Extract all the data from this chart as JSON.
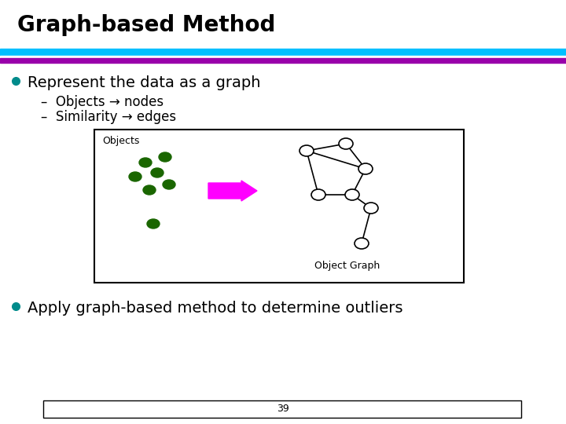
{
  "title": "Graph-based Method",
  "title_fontsize": 20,
  "title_fontweight": "bold",
  "line1_color": "#00BFFF",
  "line2_color": "#9900AA",
  "bullet_color": "#008B8B",
  "bullet1_text": "Represent the data as a graph",
  "sub1": "–  Objects → nodes",
  "sub2": "–  Similarity → edges",
  "bullet2_text": "Apply graph-based method to determine outliers",
  "page_number": "39",
  "dot_color": "#1A6600",
  "arrow_color": "#FF00FF",
  "node_edge_color": "#000000",
  "node_face_color": "#FFFFFF",
  "graph_edge_color": "#000000",
  "objects_label": "Objects",
  "graph_label": "Object Graph",
  "bg_color": "#FFFFFF"
}
